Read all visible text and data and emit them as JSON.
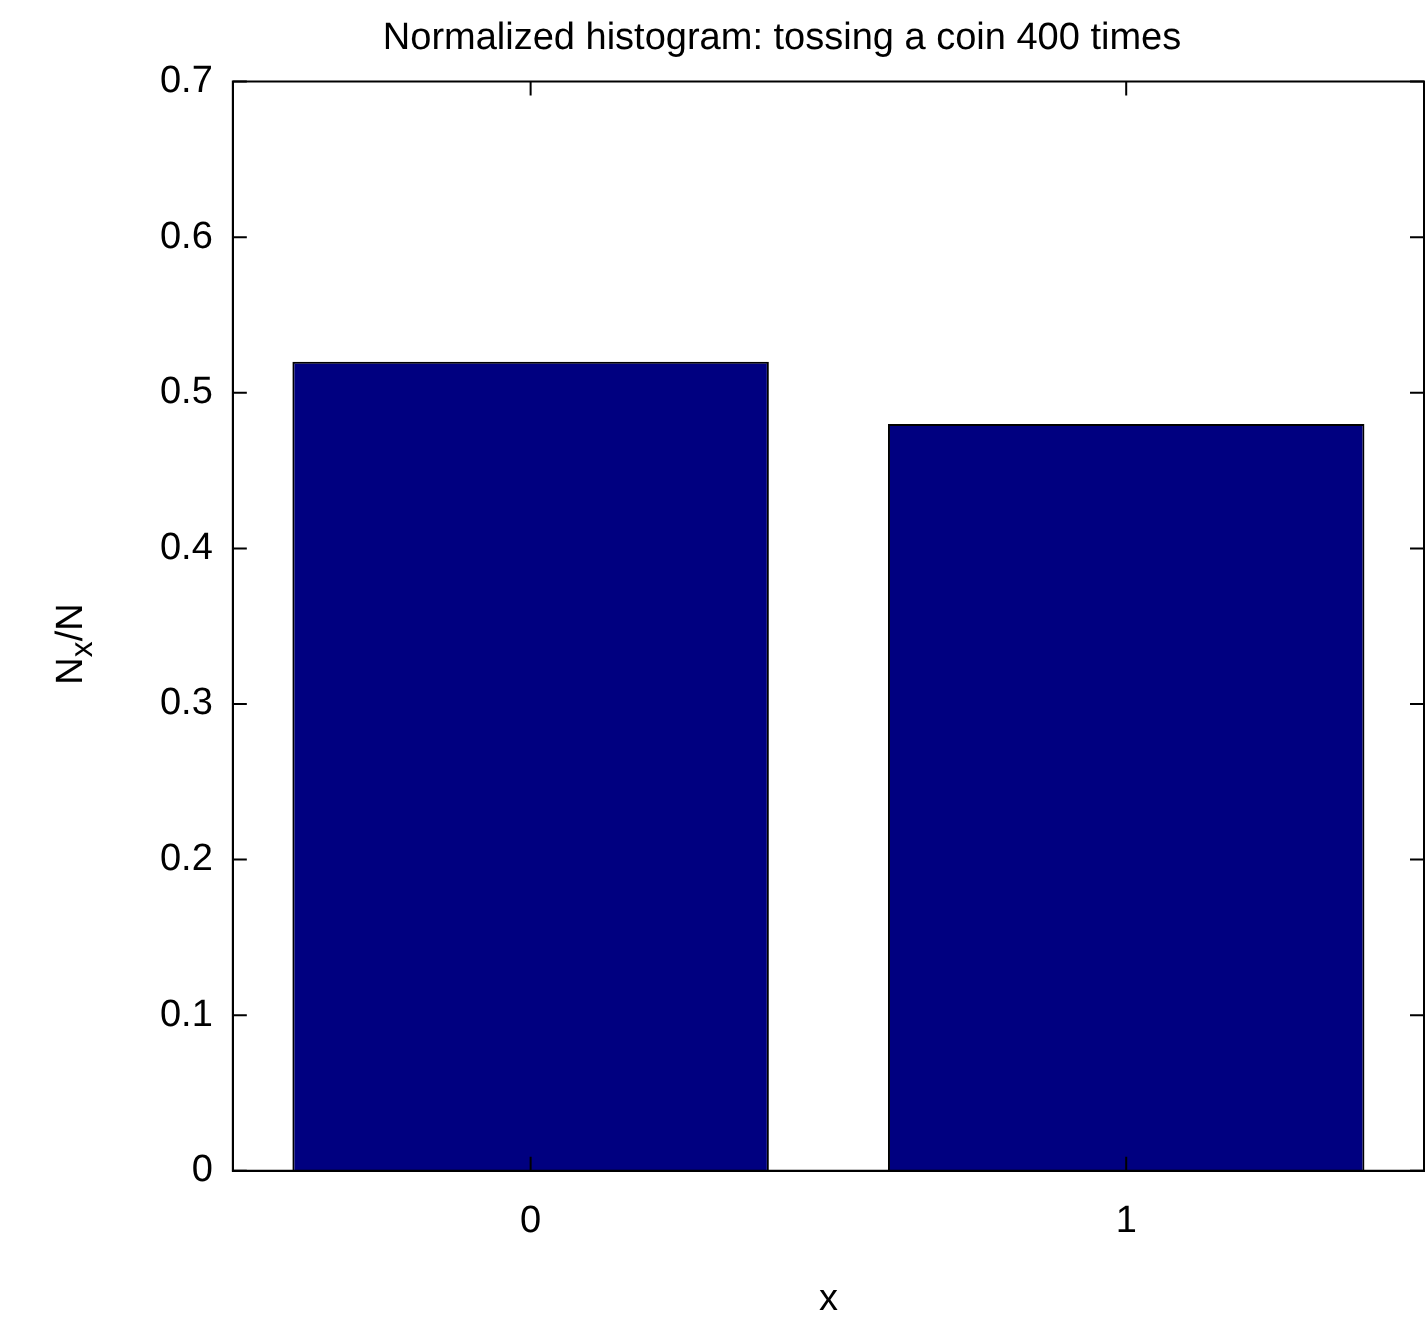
{
  "chart_data": {
    "type": "bar",
    "title": "Normalized histogram: tossing a coin 400 times",
    "xlabel": "x",
    "ylabel": "N$_{x}$/N",
    "categories": [
      "0",
      "1"
    ],
    "values": [
      0.52,
      0.48
    ],
    "color": "#000080",
    "ylim": [
      0,
      0.7
    ],
    "yticks": [
      0,
      0.1,
      0.2,
      0.3,
      0.4,
      0.5,
      0.6,
      0.7
    ],
    "grid": false,
    "legend": false
  }
}
